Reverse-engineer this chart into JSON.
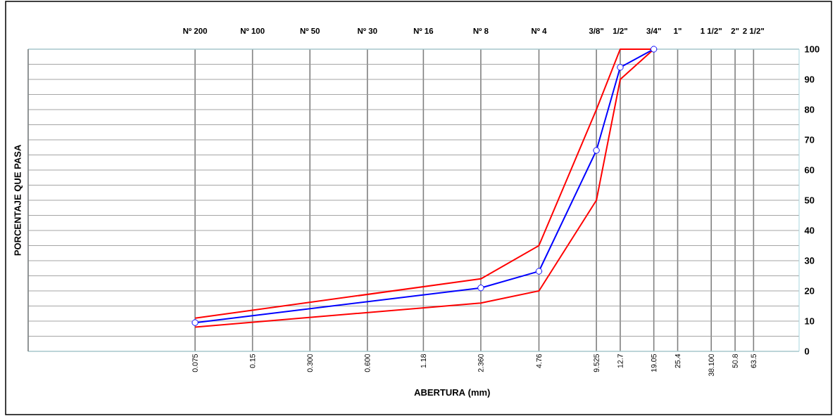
{
  "chart_data": {
    "type": "line",
    "xlabel": "ABERTURA (mm)",
    "ylabel": "PORCENTAJE QUE PASA",
    "log": "x",
    "grid": true,
    "line_style": "solid",
    "x": [
      0.075,
      2.36,
      4.76,
      9.525,
      12.7,
      19.05
    ],
    "series": [
      {
        "color": "#ff0000",
        "marker": "none",
        "values": [
          11,
          24,
          35,
          80,
          100,
          100
        ]
      },
      {
        "color": "#ff0000",
        "marker": "none",
        "values": [
          8,
          16,
          20,
          50,
          90,
          100
        ]
      },
      {
        "color": "#0000ff",
        "marker": "circle",
        "values": [
          9.5,
          21,
          26.5,
          66.5,
          94,
          100
        ]
      }
    ],
    "xlim": [
      0.01,
      110
    ],
    "ylim": [
      0,
      100
    ],
    "xticks": [
      {
        "value": 0.075,
        "label": "0.075"
      },
      {
        "value": 0.15,
        "label": "0.15"
      },
      {
        "value": 0.3,
        "label": "0.300"
      },
      {
        "value": 0.6,
        "label": "0.600"
      },
      {
        "value": 1.18,
        "label": "1.18"
      },
      {
        "value": 2.36,
        "label": "2.360"
      },
      {
        "value": 4.76,
        "label": "4.76"
      },
      {
        "value": 9.525,
        "label": "9.525"
      },
      {
        "value": 12.7,
        "label": "12.7"
      },
      {
        "value": 19.05,
        "label": "19.05"
      },
      {
        "value": 25.4,
        "label": "25.4"
      },
      {
        "value": 38.1,
        "label": "38.100"
      },
      {
        "value": 50.8,
        "label": "50.8"
      },
      {
        "value": 63.5,
        "label": "63.5"
      }
    ],
    "annotations": [
      "Nº 200",
      "Nº 100",
      "Nº 50",
      "Nº 30",
      "Nº 16",
      "Nº 8",
      "Nº 4",
      "3/8\"",
      "1/2\"",
      "3/4\"",
      "1\"",
      "1 1/2\"",
      "2\"",
      "2 1/2\""
    ],
    "yticks": [
      0,
      10,
      20,
      30,
      40,
      50,
      60,
      70,
      80,
      90,
      100
    ]
  }
}
